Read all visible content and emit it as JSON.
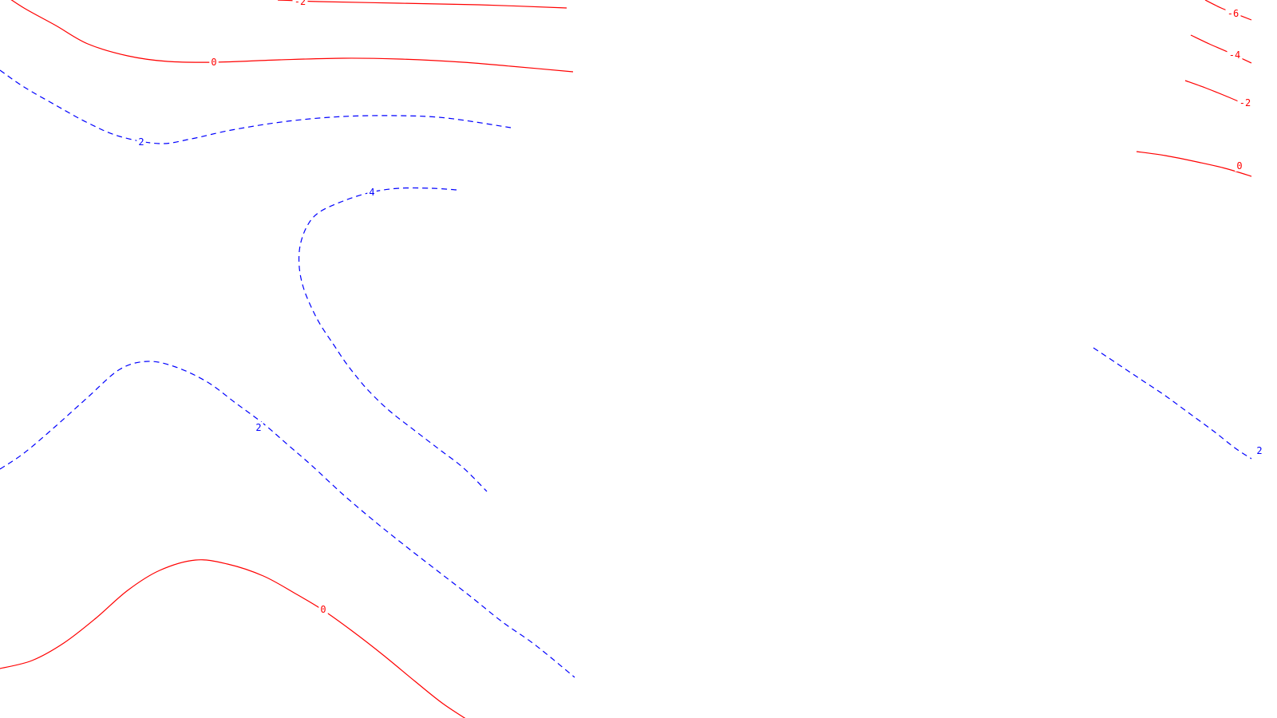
{
  "chart_data": {
    "type": "contour",
    "title": "",
    "xlabel": "",
    "ylabel": "",
    "grid": false,
    "legend": "none",
    "styles": {
      "positive": {
        "color": "#0000ff",
        "dash": "dashed"
      },
      "nonpositive": {
        "color": "#ff0000",
        "dash": "solid"
      }
    },
    "levels": [
      {
        "level": -6,
        "label": "-6",
        "segments": 1
      },
      {
        "level": -4,
        "label": "-4",
        "segments": 1
      },
      {
        "level": -2,
        "label": "-2",
        "segments": 2
      },
      {
        "level": 0,
        "label": "0",
        "segments": 3
      },
      {
        "level": 2,
        "label": "2",
        "segments": 3
      },
      {
        "level": 4,
        "label": "4",
        "segments": 1
      }
    ]
  }
}
